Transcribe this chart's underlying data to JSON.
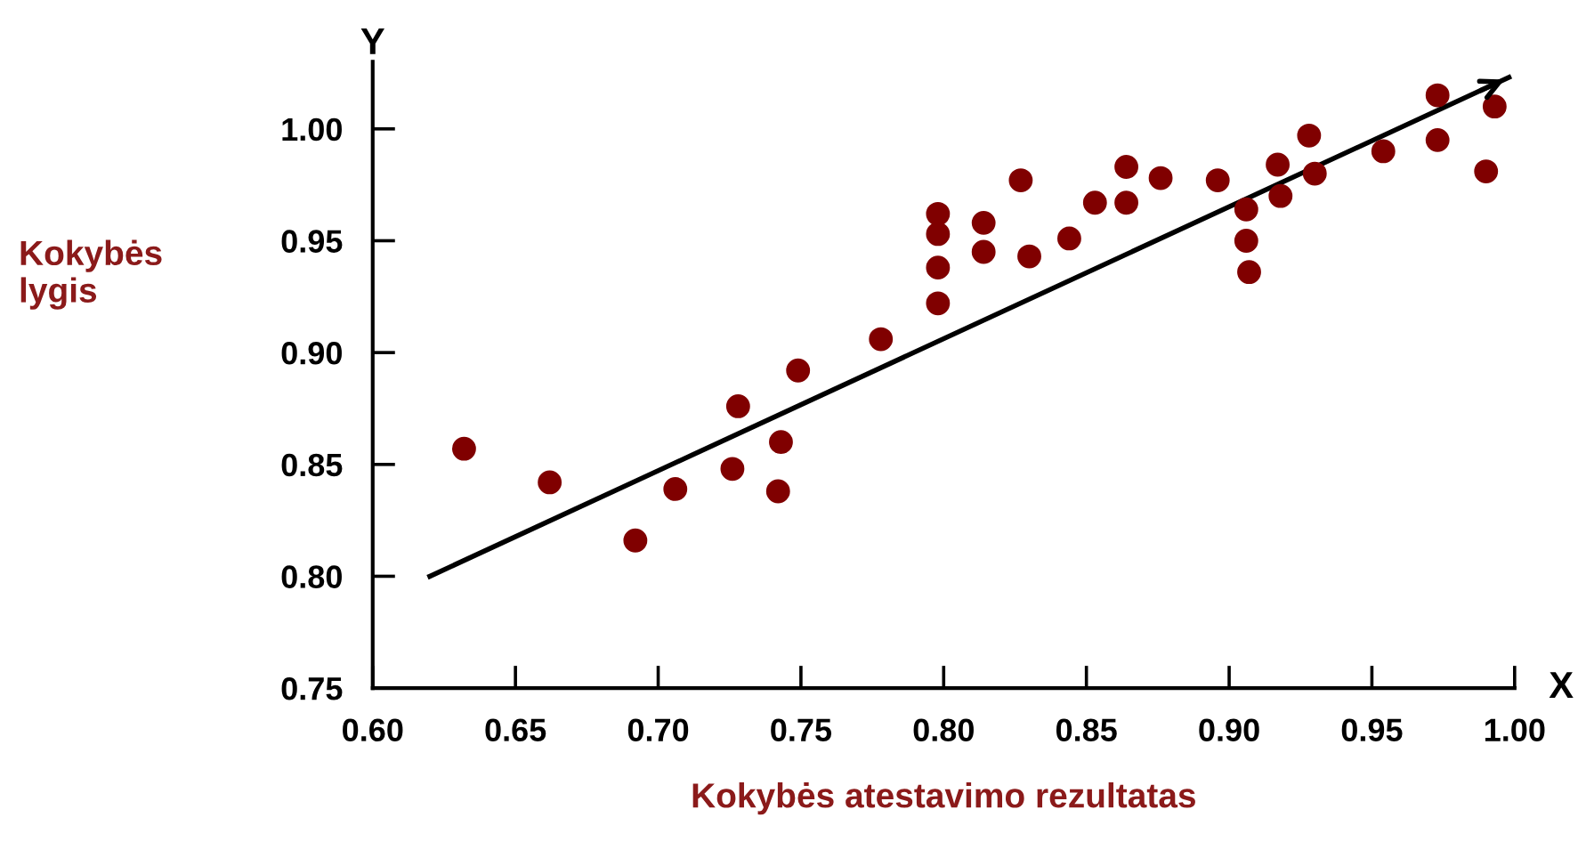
{
  "chart_data": {
    "type": "scatter",
    "xlabel": "Kokybės atestavimo rezultatas",
    "ylabel": "Kokybės\nlygis",
    "annotations": [
      "Y",
      "X"
    ],
    "xlim": [
      0.6,
      1.0
    ],
    "ylim": [
      0.75,
      1.03
    ],
    "xticks": [
      {
        "value": 0.6,
        "label": "0.60"
      },
      {
        "value": 0.65,
        "label": "0.65"
      },
      {
        "value": 0.7,
        "label": "0.70"
      },
      {
        "value": 0.75,
        "label": "0.75"
      },
      {
        "value": 0.8,
        "label": "0.80"
      },
      {
        "value": 0.85,
        "label": "0.85"
      },
      {
        "value": 0.9,
        "label": "0.90"
      },
      {
        "value": 0.95,
        "label": "0.95"
      },
      {
        "value": 1.0,
        "label": "1.00"
      }
    ],
    "yticks": [
      {
        "value": 0.75,
        "label": "0.75"
      },
      {
        "value": 0.8,
        "label": "0.80"
      },
      {
        "value": 0.85,
        "label": "0.85"
      },
      {
        "value": 0.9,
        "label": "0.90"
      },
      {
        "value": 0.95,
        "label": "0.95"
      },
      {
        "value": 1.0,
        "label": "1.00"
      }
    ],
    "grid": false,
    "legend": false,
    "series": [
      {
        "color": "#800000",
        "marker": "circle",
        "x": [
          0.632,
          0.662,
          0.692,
          0.706,
          0.726,
          0.728,
          0.743,
          0.742,
          0.749,
          0.778,
          0.798,
          0.798,
          0.798,
          0.798,
          0.814,
          0.814,
          0.827,
          0.83,
          0.844,
          0.853,
          0.864,
          0.864,
          0.876,
          0.896,
          0.906,
          0.906,
          0.907,
          0.917,
          0.918,
          0.928,
          0.93,
          0.954,
          0.973,
          0.973,
          0.99,
          0.993
        ],
        "values": [
          0.857,
          0.842,
          0.816,
          0.839,
          0.848,
          0.876,
          0.86,
          0.838,
          0.892,
          0.906,
          0.962,
          0.953,
          0.938,
          0.922,
          0.958,
          0.945,
          0.977,
          0.943,
          0.951,
          0.967,
          0.983,
          0.967,
          0.978,
          0.977,
          0.964,
          0.95,
          0.936,
          0.984,
          0.97,
          0.997,
          0.98,
          0.99,
          1.015,
          0.995,
          0.981,
          1.01
        ]
      },
      {
        "type": "line",
        "color": "#000000",
        "x": [
          0.62,
          0.998
        ],
        "values": [
          0.8,
          1.023
        ]
      }
    ]
  }
}
